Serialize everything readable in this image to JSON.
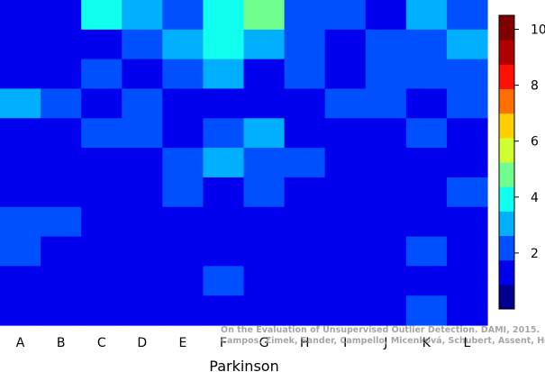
{
  "chart_data": {
    "type": "heatmap",
    "xlabel": "Parkinson",
    "x_categories": [
      "A",
      "B",
      "C",
      "D",
      "E",
      "F",
      "G",
      "H",
      "I",
      "J",
      "K",
      "L"
    ],
    "rows": 11,
    "values": [
      [
        1,
        1,
        4,
        3,
        2,
        4,
        5,
        2,
        2,
        1,
        3,
        2
      ],
      [
        1,
        1,
        1,
        2,
        3,
        4,
        3,
        2,
        1,
        2,
        2,
        3
      ],
      [
        1,
        1,
        2,
        1,
        2,
        3,
        1,
        2,
        1,
        2,
        2,
        2
      ],
      [
        3,
        2,
        1,
        2,
        1,
        1,
        1,
        1,
        2,
        2,
        1,
        2
      ],
      [
        1,
        1,
        2,
        2,
        1,
        2,
        3,
        1,
        1,
        1,
        2,
        1
      ],
      [
        1,
        1,
        1,
        1,
        2,
        3,
        2,
        2,
        1,
        1,
        1,
        1
      ],
      [
        1,
        1,
        1,
        1,
        2,
        1,
        2,
        1,
        1,
        1,
        1,
        2
      ],
      [
        2,
        2,
        1,
        1,
        1,
        1,
        1,
        1,
        1,
        1,
        1,
        1
      ],
      [
        2,
        1,
        1,
        1,
        1,
        1,
        1,
        1,
        1,
        1,
        2,
        1
      ],
      [
        1,
        1,
        1,
        1,
        1,
        2,
        1,
        1,
        1,
        1,
        1,
        1
      ],
      [
        1,
        1,
        1,
        1,
        1,
        1,
        1,
        1,
        1,
        1,
        2,
        1
      ]
    ],
    "colorbar": {
      "range": [
        0,
        10.5
      ],
      "ticks": [
        2,
        4,
        6,
        8,
        10
      ],
      "colors": [
        "#00008f",
        "#0000ef",
        "#0050ff",
        "#00b0ff",
        "#10ffef",
        "#70ff8f",
        "#cfff30",
        "#ffcf00",
        "#ff7000",
        "#ff1000",
        "#b00000",
        "#800000"
      ]
    },
    "annotation_lines": [
      "On the Evaluation of Unsupervised Outlier Detection. DAMI, 2015.",
      "Campos, Zimek, Sander, Campello, Micenková, Schubert, Assent, Houle"
    ]
  }
}
